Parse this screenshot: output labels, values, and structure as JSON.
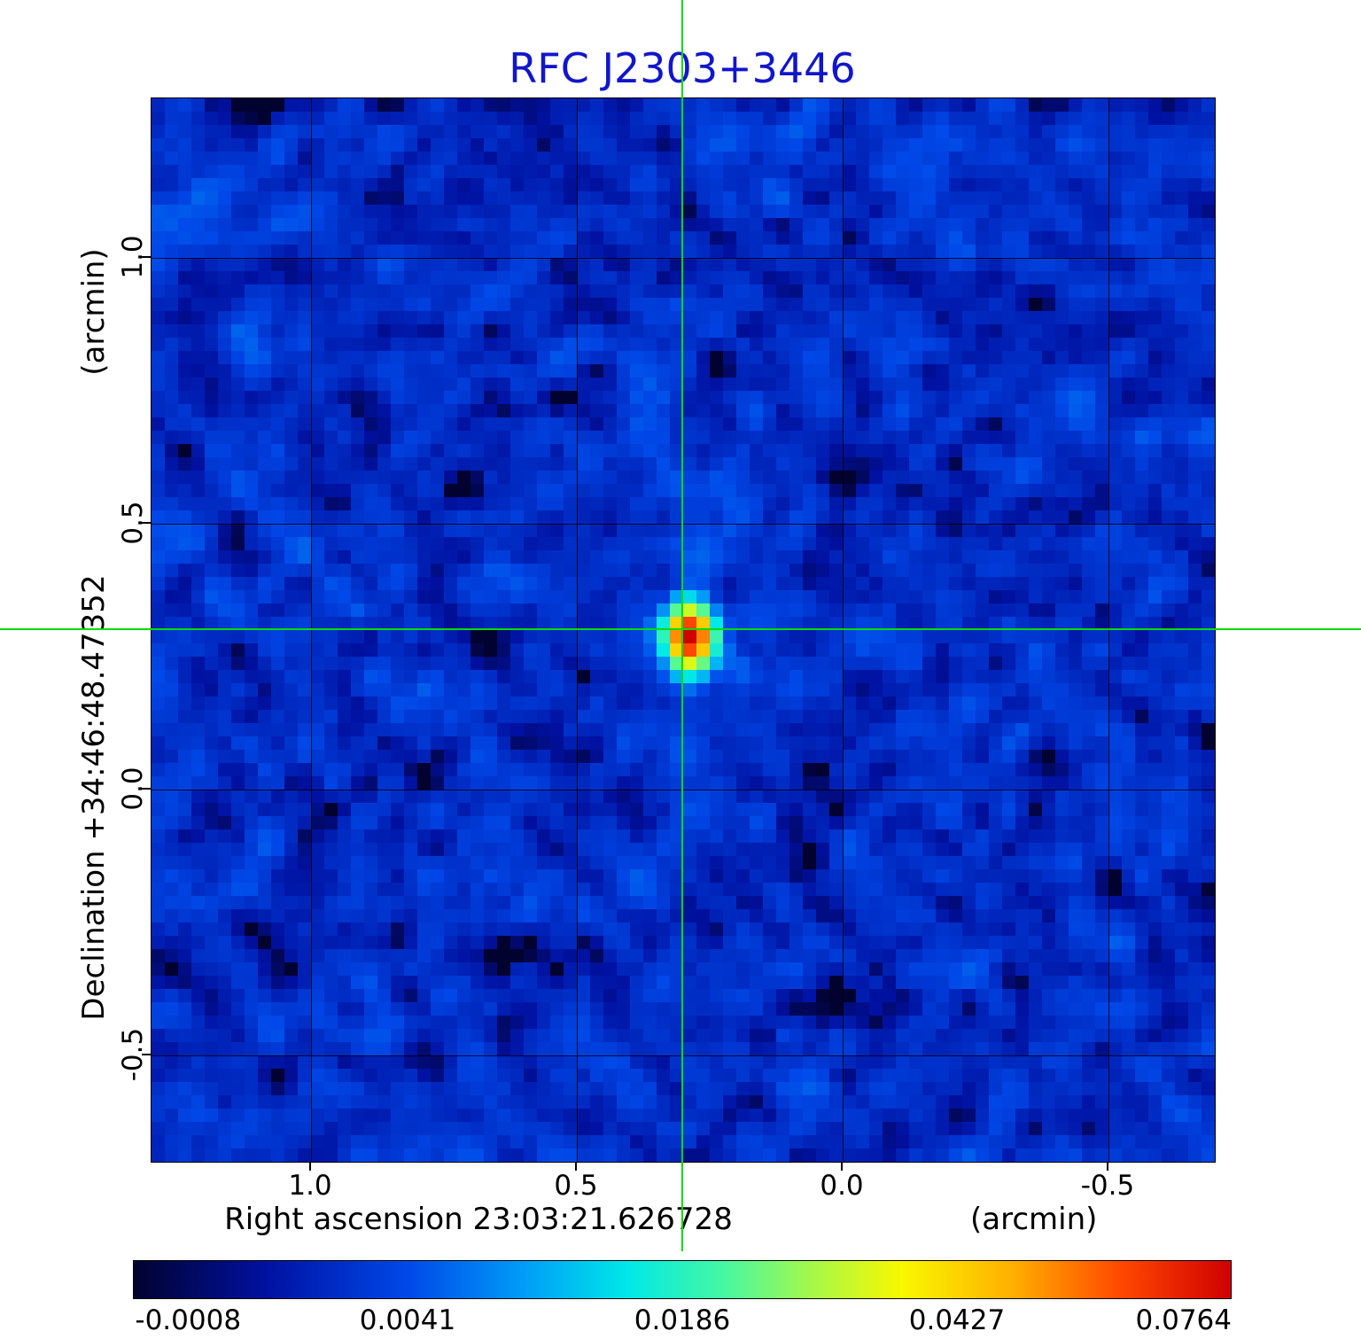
{
  "title": "RFC J2303+3446",
  "colors": {
    "title": "#1116cc",
    "crosshair": "#00dd00",
    "grid": "#000000"
  },
  "axes": {
    "x_label": "Right ascension  23:03:21.626728",
    "x_unit": "(arcmin)",
    "y_label": "Declination  +34:46:48.47352",
    "y_unit": "(arcmin)",
    "x_tick_labels": [
      "1.0",
      "0.5",
      "0.0",
      "-0.5"
    ],
    "y_tick_labels": [
      "1.0",
      "0.5",
      "0.0",
      "-0.5"
    ]
  },
  "colorbar": {
    "tick_labels": [
      "-0.0008",
      "0.0041",
      "0.0186",
      "0.0427",
      "0.0764"
    ]
  },
  "chart_data": {
    "type": "heatmap",
    "title": "RFC J2303+3446",
    "xlabel": "Right ascension 23:03:21.626728 (arcmin)",
    "ylabel": "Declination +34:46:48.47352 (arcmin)",
    "x_range": [
      1.3,
      -0.7
    ],
    "y_range": [
      1.3,
      -0.7
    ],
    "x_ticks": [
      1.0,
      0.5,
      0.0,
      -0.5
    ],
    "y_ticks": [
      1.0,
      0.5,
      0.0,
      -0.5
    ],
    "value_range": [
      -0.0008,
      0.0764
    ],
    "colorbar_tick_values": [
      -0.0008,
      0.0041,
      0.0186,
      0.0427,
      0.0764
    ],
    "intensity_scale": "sqrt",
    "grid_on": true,
    "grid_cells": 80,
    "background_noise": {
      "mean": 0.0018,
      "sigma": 0.0016
    },
    "source": {
      "x_arcmin": 0.3,
      "y_arcmin": 0.3,
      "peak_value": 0.0764,
      "sigma_x_cells": 1.15,
      "sigma_y_cells": 1.5
    },
    "crosshair": {
      "x_arcmin": 0.3,
      "y_arcmin": 0.3
    },
    "colormap": [
      {
        "pos": 0.0,
        "color": "#020230"
      },
      {
        "pos": 0.12,
        "color": "#0011a0"
      },
      {
        "pos": 0.25,
        "color": "#0048e8"
      },
      {
        "pos": 0.36,
        "color": "#00a0f8"
      },
      {
        "pos": 0.45,
        "color": "#00e8e8"
      },
      {
        "pos": 0.54,
        "color": "#48f8a0"
      },
      {
        "pos": 0.62,
        "color": "#a8f848"
      },
      {
        "pos": 0.7,
        "color": "#f8f800"
      },
      {
        "pos": 0.8,
        "color": "#ffb000"
      },
      {
        "pos": 0.9,
        "color": "#ff4800"
      },
      {
        "pos": 1.0,
        "color": "#cf0000"
      }
    ]
  }
}
